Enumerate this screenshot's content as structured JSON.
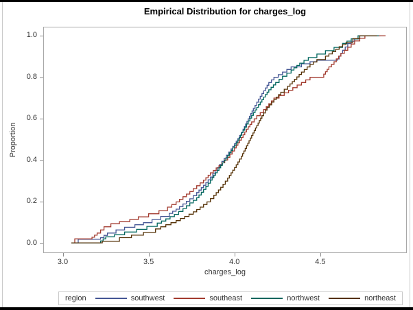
{
  "window": {
    "frame_color": "#000000",
    "edge_line_color": "#c9c9c9",
    "background": "#ffffff"
  },
  "frame_style": {
    "plot_border_color": "#a8a8a8",
    "tick_color": "#8a8a8a",
    "axis_text_color": "#333333",
    "title_color": "#000000"
  },
  "chart_data": {
    "type": "line",
    "subtype": "empirical-cdf-step",
    "title": "Empirical Distribution for charges_log",
    "xlabel": "charges_log",
    "ylabel": "Proportion",
    "xlim": [
      2.89,
      5.0
    ],
    "ylim": [
      -0.043,
      1.04
    ],
    "x_ticks": [
      3.0,
      3.5,
      4.0,
      4.5
    ],
    "y_ticks": [
      0.0,
      0.2,
      0.4,
      0.6,
      0.8,
      1.0
    ],
    "grid": false,
    "legend_position": "bottom",
    "legend_title": "region",
    "series": [
      {
        "name": "southwest",
        "color": "#445694",
        "points": [
          [
            3.05,
            0.003
          ],
          [
            3.09,
            0.02
          ],
          [
            3.22,
            0.028
          ],
          [
            3.26,
            0.05
          ],
          [
            3.31,
            0.065
          ],
          [
            3.36,
            0.078
          ],
          [
            3.42,
            0.09
          ],
          [
            3.47,
            0.1
          ],
          [
            3.52,
            0.115
          ],
          [
            3.57,
            0.13
          ],
          [
            3.62,
            0.145
          ],
          [
            3.66,
            0.165
          ],
          [
            3.7,
            0.19
          ],
          [
            3.74,
            0.215
          ],
          [
            3.78,
            0.245
          ],
          [
            3.82,
            0.28
          ],
          [
            3.86,
            0.32
          ],
          [
            3.9,
            0.365
          ],
          [
            3.94,
            0.41
          ],
          [
            3.98,
            0.455
          ],
          [
            4.02,
            0.505
          ],
          [
            4.05,
            0.55
          ],
          [
            4.08,
            0.6
          ],
          [
            4.11,
            0.65
          ],
          [
            4.14,
            0.695
          ],
          [
            4.17,
            0.735
          ],
          [
            4.2,
            0.775
          ],
          [
            4.23,
            0.8
          ],
          [
            4.28,
            0.825
          ],
          [
            4.33,
            0.85
          ],
          [
            4.39,
            0.865
          ],
          [
            4.44,
            0.875
          ],
          [
            4.48,
            0.882
          ],
          [
            4.6,
            0.888
          ],
          [
            4.63,
            0.93
          ],
          [
            4.66,
            0.962
          ],
          [
            4.7,
            0.985
          ],
          [
            4.73,
            1.0
          ],
          [
            4.85,
            1.0
          ]
        ]
      },
      {
        "name": "southeast",
        "color": "#A23A2E",
        "points": [
          [
            3.05,
            0.003
          ],
          [
            3.07,
            0.022
          ],
          [
            3.17,
            0.03
          ],
          [
            3.2,
            0.05
          ],
          [
            3.24,
            0.08
          ],
          [
            3.28,
            0.095
          ],
          [
            3.33,
            0.105
          ],
          [
            3.39,
            0.115
          ],
          [
            3.44,
            0.128
          ],
          [
            3.5,
            0.143
          ],
          [
            3.56,
            0.158
          ],
          [
            3.61,
            0.175
          ],
          [
            3.66,
            0.2
          ],
          [
            3.7,
            0.225
          ],
          [
            3.74,
            0.25
          ],
          [
            3.78,
            0.278
          ],
          [
            3.82,
            0.305
          ],
          [
            3.86,
            0.34
          ],
          [
            3.91,
            0.375
          ],
          [
            3.96,
            0.415
          ],
          [
            4.0,
            0.46
          ],
          [
            4.04,
            0.51
          ],
          [
            4.07,
            0.55
          ],
          [
            4.1,
            0.585
          ],
          [
            4.13,
            0.615
          ],
          [
            4.17,
            0.645
          ],
          [
            4.23,
            0.7
          ],
          [
            4.29,
            0.725
          ],
          [
            4.34,
            0.75
          ],
          [
            4.39,
            0.775
          ],
          [
            4.44,
            0.8
          ],
          [
            4.52,
            0.815
          ],
          [
            4.55,
            0.85
          ],
          [
            4.58,
            0.875
          ],
          [
            4.62,
            0.915
          ],
          [
            4.66,
            0.945
          ],
          [
            4.7,
            0.975
          ],
          [
            4.76,
            1.0
          ],
          [
            4.88,
            1.0
          ]
        ]
      },
      {
        "name": "northwest",
        "color": "#01665E",
        "points": [
          [
            3.05,
            0.003
          ],
          [
            3.22,
            0.012
          ],
          [
            3.25,
            0.032
          ],
          [
            3.3,
            0.042
          ],
          [
            3.36,
            0.055
          ],
          [
            3.43,
            0.068
          ],
          [
            3.49,
            0.082
          ],
          [
            3.55,
            0.098
          ],
          [
            3.6,
            0.118
          ],
          [
            3.65,
            0.14
          ],
          [
            3.7,
            0.168
          ],
          [
            3.74,
            0.195
          ],
          [
            3.78,
            0.22
          ],
          [
            3.82,
            0.26
          ],
          [
            3.86,
            0.305
          ],
          [
            3.9,
            0.352
          ],
          [
            3.94,
            0.4
          ],
          [
            3.98,
            0.448
          ],
          [
            4.02,
            0.498
          ],
          [
            4.05,
            0.545
          ],
          [
            4.08,
            0.59
          ],
          [
            4.11,
            0.63
          ],
          [
            4.14,
            0.668
          ],
          [
            4.17,
            0.705
          ],
          [
            4.2,
            0.74
          ],
          [
            4.24,
            0.775
          ],
          [
            4.28,
            0.805
          ],
          [
            4.33,
            0.835
          ],
          [
            4.38,
            0.868
          ],
          [
            4.43,
            0.895
          ],
          [
            4.48,
            0.912
          ],
          [
            4.53,
            0.928
          ],
          [
            4.58,
            0.944
          ],
          [
            4.63,
            0.963
          ],
          [
            4.68,
            0.985
          ],
          [
            4.72,
            1.0
          ],
          [
            4.84,
            1.0
          ]
        ]
      },
      {
        "name": "northeast",
        "color": "#543005",
        "points": [
          [
            3.05,
            0.003
          ],
          [
            3.23,
            0.01
          ],
          [
            3.33,
            0.028
          ],
          [
            3.4,
            0.04
          ],
          [
            3.47,
            0.053
          ],
          [
            3.54,
            0.07
          ],
          [
            3.6,
            0.09
          ],
          [
            3.66,
            0.11
          ],
          [
            3.71,
            0.13
          ],
          [
            3.76,
            0.152
          ],
          [
            3.8,
            0.175
          ],
          [
            3.84,
            0.2
          ],
          [
            3.88,
            0.232
          ],
          [
            3.92,
            0.27
          ],
          [
            3.96,
            0.315
          ],
          [
            4.0,
            0.365
          ],
          [
            4.04,
            0.42
          ],
          [
            4.07,
            0.47
          ],
          [
            4.1,
            0.52
          ],
          [
            4.13,
            0.568
          ],
          [
            4.16,
            0.615
          ],
          [
            4.19,
            0.655
          ],
          [
            4.23,
            0.693
          ],
          [
            4.27,
            0.728
          ],
          [
            4.31,
            0.757
          ],
          [
            4.35,
            0.79
          ],
          [
            4.39,
            0.825
          ],
          [
            4.44,
            0.862
          ],
          [
            4.48,
            0.885
          ],
          [
            4.53,
            0.902
          ],
          [
            4.57,
            0.923
          ],
          [
            4.61,
            0.947
          ],
          [
            4.65,
            0.967
          ],
          [
            4.69,
            0.986
          ],
          [
            4.73,
            1.0
          ],
          [
            4.83,
            1.0
          ]
        ]
      }
    ]
  }
}
